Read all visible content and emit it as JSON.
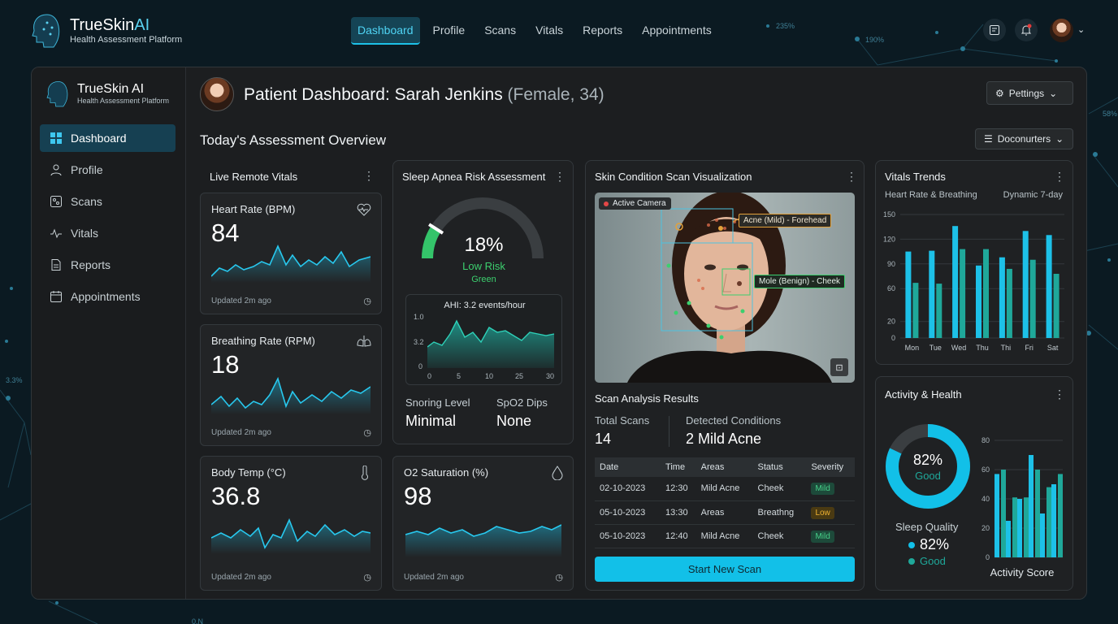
{
  "app": {
    "title": "TrueSkin AI",
    "title_a": "TrueSkin",
    "title_b": "AI",
    "subtitle": "Health Assessment Platform"
  },
  "nav": [
    "Dashboard",
    "Profile",
    "Scans",
    "Vitals",
    "Reports",
    "Appointments"
  ],
  "background_labels": [
    "235%",
    "190%",
    "58%",
    "3.3%",
    "0.N"
  ],
  "sidebar": {
    "title": "TrueSkin AI",
    "subtitle": "Health Assessment Platform",
    "items": [
      {
        "label": "Dashboard",
        "icon": "grid-icon"
      },
      {
        "label": "Profile",
        "icon": "user-icon"
      },
      {
        "label": "Scans",
        "icon": "scan-icon"
      },
      {
        "label": "Vitals",
        "icon": "pulse-icon"
      },
      {
        "label": "Reports",
        "icon": "document-icon"
      },
      {
        "label": "Appointments",
        "icon": "calendar-icon"
      }
    ]
  },
  "header": {
    "patient": "Patient Dashboard: Sarah Jenkins",
    "meta": "(Female, 34)",
    "settings_label": "Pettings",
    "section_title": "Today's Assessment Overview",
    "filter_label": "Doconurters"
  },
  "vitals": {
    "title": "Live Remote Vitals",
    "heart": {
      "label": "Heart Rate (BPM)",
      "value": "84",
      "updated": "Updated 2m ago"
    },
    "breathing": {
      "label": "Breathing Rate (RPM)",
      "value": "18",
      "updated": "Updated 2m ago"
    },
    "temp": {
      "label": "Body Temp (°C)",
      "value": "36.8",
      "updated": "Updated 2m ago"
    }
  },
  "sleep": {
    "title": "Sleep Apnea Risk Assessment",
    "risk_percent": 18,
    "risk_text": "18%",
    "risk_label": "Low Risk",
    "risk_color_label": "Green",
    "ahi": "AHI: 3.2 events/hour",
    "yticks": [
      "1.0",
      "3.2",
      "0"
    ],
    "xticks": [
      "0",
      "5",
      "10",
      "25",
      "30"
    ],
    "snoring_label": "Snoring Level",
    "snoring_value": "Minimal",
    "spo2_label": "SpO2 Dips",
    "spo2_value": "None"
  },
  "o2": {
    "label": "O2 Saturation (%)",
    "value": "98",
    "updated": "Updated 2m ago"
  },
  "scan": {
    "title": "Skin Condition Scan Visualization",
    "camera": "Active Camera",
    "tag1": "Acne (Mild) - Forehead",
    "tag2": "Mole (Benign) - Cheek",
    "results_title": "Scan Analysis Results",
    "total_label": "Total Scans",
    "total_value": "14",
    "detected_label": "Detected Conditions",
    "detected_value": "2 Mild Acne",
    "columns": [
      "Date",
      "Time",
      "Areas",
      "Status",
      "Severity"
    ],
    "rows": [
      [
        "02-10-2023",
        "12:30",
        "Mild Acne",
        "Cheek",
        "Mild"
      ],
      [
        "05-10-2023",
        "13:30",
        "Areas",
        "Breathng",
        "Low"
      ],
      [
        "05-10-2023",
        "12:40",
        "Mild Acne",
        "Cheek",
        "Mild"
      ]
    ],
    "button": "Start New Scan"
  },
  "trends": {
    "title": "Vitals Trends",
    "subtitle": "Heart Rate & Breathing",
    "range": "Dynamic 7-day"
  },
  "activity": {
    "title": "Activity & Health",
    "ring_value": "82%",
    "ring_label": "Good",
    "ring_fraction": 0.82,
    "sleep_label": "Sleep Quality",
    "sleep_value": "82%",
    "sleep_status": "Good",
    "score_label": "Activity Score"
  },
  "colors": {
    "accent": "#1dc1e8",
    "teal": "#1fa89a",
    "green": "#3ccf6e"
  },
  "chart_data": [
    {
      "type": "bar",
      "title": "Vitals Trends",
      "categories": [
        "Mon",
        "Tue",
        "Wed",
        "Thu",
        "Thi",
        "Fri",
        "Sat"
      ],
      "ylim": [
        0,
        150
      ],
      "yticks": [
        0,
        20,
        60,
        90,
        120,
        150
      ],
      "series": [
        {
          "values": [
            105,
            106,
            136,
            88,
            98,
            130,
            125
          ]
        },
        {
          "values": [
            67,
            66,
            108,
            108,
            84,
            95,
            78
          ]
        }
      ]
    },
    {
      "type": "bar",
      "title": "",
      "xlabel": "Activity Score",
      "ylim": [
        0,
        80
      ],
      "yticks": [
        0,
        20,
        40,
        60,
        80
      ],
      "series": [
        {
          "values": [
            57,
            25,
            40,
            70,
            30,
            50
          ]
        },
        {
          "values": [
            60,
            41,
            41,
            60,
            48,
            57
          ]
        }
      ]
    }
  ]
}
